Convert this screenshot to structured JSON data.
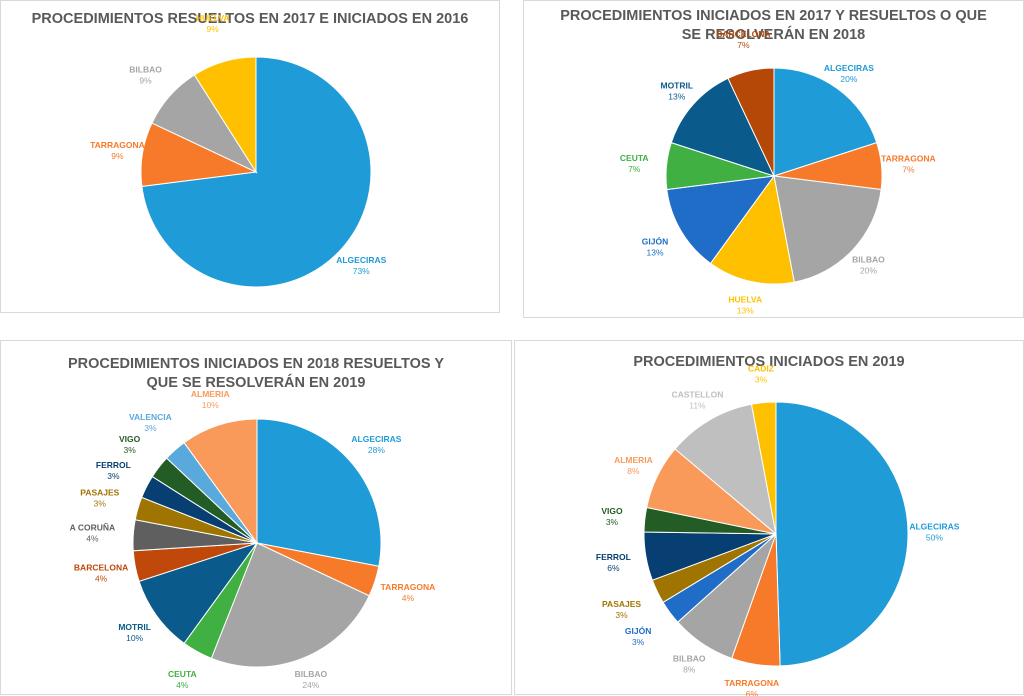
{
  "chart_data": [
    {
      "type": "pie",
      "title": "PROCEDIMIENTOS RESUELTOS EN 2017 E INICIADOS EN 2016",
      "categories": [
        "ALGECIRAS",
        "TARRAGONA",
        "BILBAO",
        "HUELVA"
      ],
      "values": [
        73,
        9,
        9,
        9
      ],
      "labels": [
        "73%",
        "9%",
        "9%",
        "9%"
      ],
      "colors": [
        "#1f9bd7",
        "#f67a2a",
        "#a5a5a5",
        "#ffc000"
      ]
    },
    {
      "type": "pie",
      "title": "PROCEDIMIENTOS INICIADOS EN 2017 Y RESUELTOS O QUE SE RESOLVERÁN EN 2018",
      "categories": [
        "ALGECIRAS",
        "TARRAGONA",
        "BILBAO",
        "HUELVA",
        "GIJÓN",
        "CEUTA",
        "MOTRIL",
        "BARCELONA"
      ],
      "values": [
        20,
        7,
        20,
        13,
        13,
        7,
        13,
        7
      ],
      "labels": [
        "20%",
        "7%",
        "20%",
        "13%",
        "13%",
        "7%",
        "13%",
        "7%"
      ],
      "colors": [
        "#1f9bd7",
        "#f67a2a",
        "#a5a5a5",
        "#ffc000",
        "#1f6dc7",
        "#3fb041",
        "#0b5a8c",
        "#b54806"
      ]
    },
    {
      "type": "pie",
      "title": "PROCEDIMIENTOS INICIADOS EN 2018 RESUELTOS Y QUE SE RESOLVERÁN EN 2019",
      "categories": [
        "ALGECIRAS",
        "TARRAGONA",
        "BILBAO",
        "CEUTA",
        "MOTRIL",
        "BARCELONA",
        "A CORUÑA",
        "PASAJES",
        "FERROL",
        "VIGO",
        "VALENCIA",
        "ALMERIA"
      ],
      "values": [
        28,
        4,
        24,
        4,
        10,
        4,
        4,
        3,
        3,
        3,
        3,
        10
      ],
      "labels": [
        "28%",
        "4%",
        "24%",
        "4%",
        "10%",
        "4%",
        "4%",
        "3%",
        "3%",
        "3%",
        "3%",
        "10%"
      ],
      "colors": [
        "#1f9bd7",
        "#f67a2a",
        "#a5a5a5",
        "#3fb041",
        "#0b5a8c",
        "#c0480a",
        "#5f5f5f",
        "#a07400",
        "#073f72",
        "#235c24",
        "#5aa9dc",
        "#fa9a5a"
      ]
    },
    {
      "type": "pie",
      "title": "PROCEDIMIENTOS INICIADOS EN 2019",
      "categories": [
        "ALGECIRAS",
        "TARRAGONA",
        "BILBAO",
        "GIJÓN",
        "PASAJES",
        "FERROL",
        "VIGO",
        "ALMERIA",
        "CASTELLON",
        "CADIZ"
      ],
      "values": [
        50,
        6,
        8,
        3,
        3,
        6,
        3,
        8,
        11,
        3
      ],
      "labels": [
        "50%",
        "6%",
        "8%",
        "3%",
        "3%",
        "6%",
        "3%",
        "8%",
        "11%",
        "3%"
      ],
      "colors": [
        "#1f9bd7",
        "#f67a2a",
        "#a5a5a5",
        "#1f6dc7",
        "#a07400",
        "#073f72",
        "#235c24",
        "#fa9a5a",
        "#bfbfbf",
        "#ffc000"
      ]
    }
  ]
}
